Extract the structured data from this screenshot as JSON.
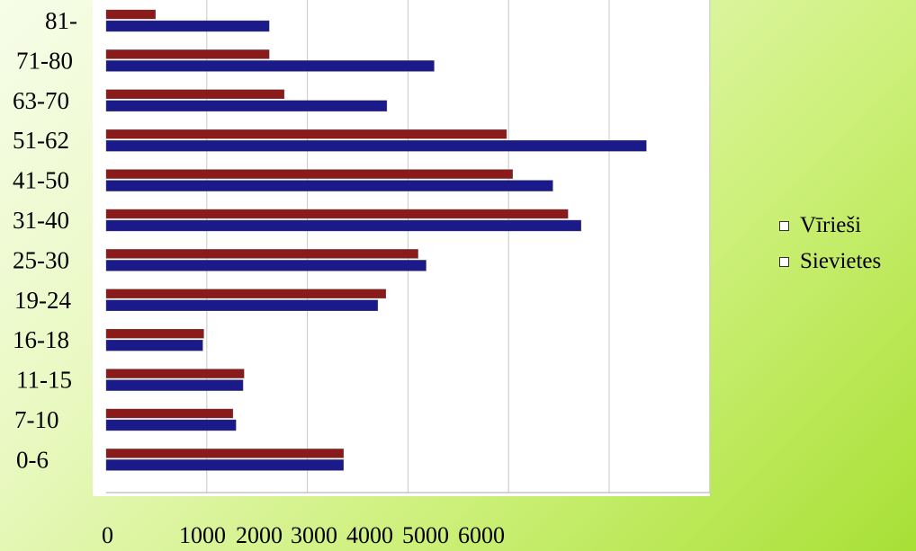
{
  "chart_data": {
    "type": "bar",
    "orientation": "horizontal",
    "title": "",
    "xlabel": "",
    "ylabel": "",
    "categories": [
      "81-",
      "71-80",
      "63-70",
      "51-62",
      "41-50",
      "31-40",
      "25-30",
      "19-24",
      "16-18",
      "11-15",
      "7-10",
      "0-6"
    ],
    "series": [
      {
        "name": "Vīrieši",
        "color": "#8b1a1a",
        "values": [
          490,
          1620,
          1770,
          3980,
          4040,
          4590,
          3100,
          2780,
          970,
          1370,
          1260,
          2360
        ]
      },
      {
        "name": "Sievietes",
        "color": "#1a1a8a",
        "values": [
          1620,
          3260,
          2790,
          5370,
          4440,
          4720,
          3180,
          2700,
          960,
          1360,
          1290,
          2360
        ]
      }
    ],
    "x_tick_labels": [
      "0",
      "1000",
      "2000",
      "3000",
      "4000",
      "5000",
      "6000"
    ],
    "xlim": [
      0,
      6000
    ],
    "grid": true,
    "legend_position": "right"
  }
}
